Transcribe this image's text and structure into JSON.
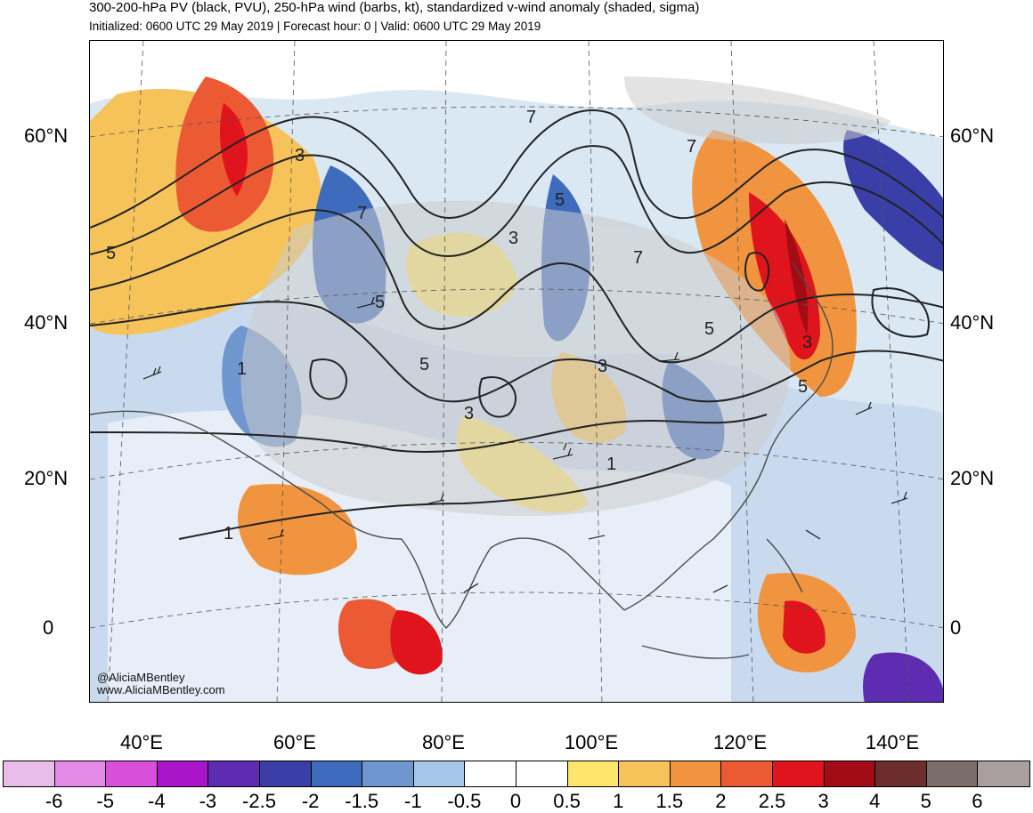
{
  "header": {
    "title": "300-200-hPa PV (black, PVU), 250-hPa wind (barbs, kt), standardized v-wind anomaly (shaded, sigma)",
    "subtitle": "Initialized: 0600 UTC 29 May 2019 | Forecast hour: 0 | Valid: 0600 UTC 29 May 2019"
  },
  "map": {
    "lat_labels_left": [
      "60°N",
      "40°N",
      "20°N",
      "0"
    ],
    "lat_labels_right": [
      "60°N",
      "40°N",
      "20°N",
      "0"
    ],
    "lon_labels": [
      "40°E",
      "60°E",
      "80°E",
      "100°E",
      "120°E",
      "140°E"
    ],
    "contour_labels": [
      "7",
      "7",
      "5",
      "3",
      "5",
      "7",
      "3",
      "7",
      "5",
      "1",
      "3",
      "3",
      "1",
      "1",
      "5",
      "3",
      "5",
      "5"
    ],
    "credit_handle": "@AliciaMBentley",
    "credit_url": "www.AliciaMBentley.com",
    "colors": {
      "land": "#cccccc",
      "coast": "#4a4a4a",
      "contour": "#222222"
    }
  },
  "colorbar": {
    "labels": [
      "-6",
      "-5",
      "-4",
      "-3",
      "-2.5",
      "-2",
      "-1.5",
      "-1",
      "-0.5",
      "0",
      "0.5",
      "1",
      "1.5",
      "2",
      "2.5",
      "3",
      "4",
      "5",
      "6"
    ],
    "colors": [
      "#e9bde9",
      "#e58ae6",
      "#d84fda",
      "#a916c9",
      "#5e2cb0",
      "#3a3fa8",
      "#3f6bbd",
      "#6f97cf",
      "#a5c6e6",
      "#ffffff",
      "#ffffff",
      "#fde56b",
      "#f6c35a",
      "#f0943f",
      "#ec5a34",
      "#e0141c",
      "#a20c14",
      "#6b2e2c",
      "#7a6e6b",
      "#a89f9e"
    ]
  }
}
